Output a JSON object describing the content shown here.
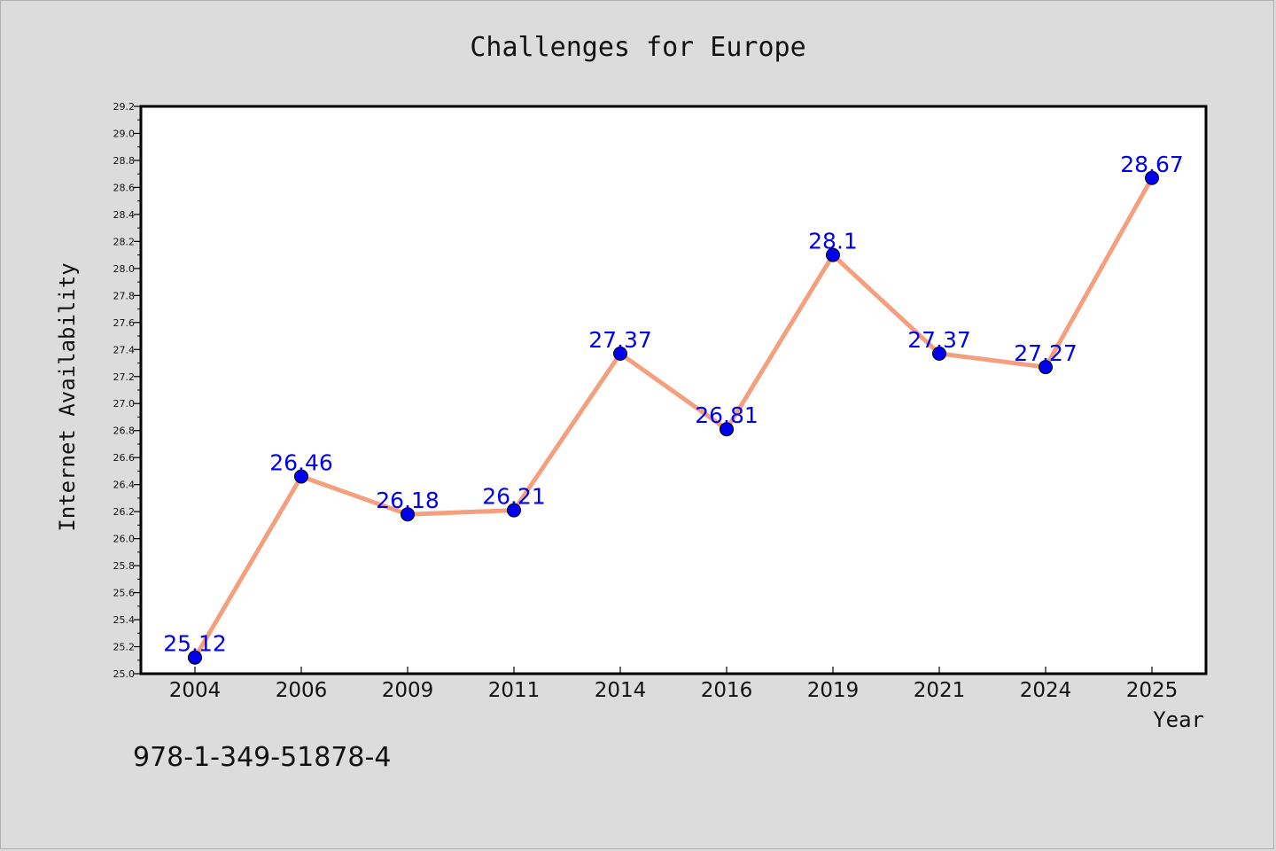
{
  "colors": {
    "background": "#dcdcdc",
    "plot_background": "#ffffff",
    "line": "#f4a07e",
    "marker": "#0000ee",
    "data_label": "#0000ee"
  },
  "footer": {
    "isbn": "978-1-349-51878-4"
  },
  "chart_data": {
    "type": "line",
    "title": "Challenges for Europe",
    "xlabel": "Year",
    "ylabel": "Internet Availability",
    "categories": [
      "2004",
      "2006",
      "2009",
      "2011",
      "2014",
      "2016",
      "2019",
      "2021",
      "2024",
      "2025"
    ],
    "series": [
      {
        "values": [
          25.12,
          26.46,
          26.18,
          26.21,
          27.37,
          26.81,
          28.1,
          27.37,
          27.27,
          28.67
        ]
      }
    ],
    "data_labels": [
      "25.12",
      "26.46",
      "26.18",
      "26.21",
      "27.37",
      "26.81",
      "28.1",
      "27.37",
      "27.27",
      "28.67"
    ],
    "ylim": [
      25.0,
      29.2
    ],
    "yticks": [
      "25.0",
      "25.2",
      "25.4",
      "25.6",
      "25.8",
      "26.0",
      "26.2",
      "26.4",
      "26.6",
      "26.8",
      "27.0",
      "27.2",
      "27.4",
      "27.6",
      "27.8",
      "28.0",
      "28.2",
      "28.4",
      "28.6",
      "28.8",
      "29.0",
      "29.2"
    ],
    "grid": false,
    "legend": "none"
  }
}
